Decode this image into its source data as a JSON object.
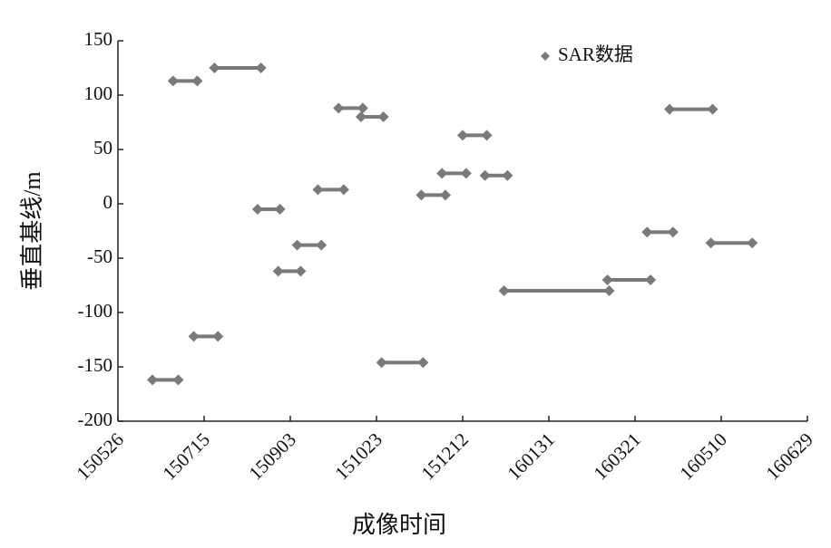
{
  "chart_data": {
    "type": "segment",
    "xlabel": "成像时间",
    "ylabel": "垂直基线/m",
    "xlim": [
      "2015-05-26",
      "2016-06-29"
    ],
    "xticks": [
      {
        "value": "2015-05-26",
        "label": "150526"
      },
      {
        "value": "2015-07-15",
        "label": "150715"
      },
      {
        "value": "2015-09-03",
        "label": "150903"
      },
      {
        "value": "2015-10-23",
        "label": "151023"
      },
      {
        "value": "2015-12-12",
        "label": "151212"
      },
      {
        "value": "2016-01-31",
        "label": "160131"
      },
      {
        "value": "2016-03-21",
        "label": "160321"
      },
      {
        "value": "2016-05-10",
        "label": "160510"
      },
      {
        "value": "2016-06-29",
        "label": "160629"
      }
    ],
    "ylim": [
      -200,
      150
    ],
    "yticks": [
      -200,
      -150,
      -100,
      -50,
      0,
      50,
      100,
      150
    ],
    "legend": "top-right",
    "series": [
      {
        "name": "SAR数据",
        "color": "#7a7a7a",
        "x_start": [
          "2015-06-15",
          "2015-06-27",
          "2015-07-09",
          "2015-07-21",
          "2015-08-15",
          "2015-08-27",
          "2015-09-07",
          "2015-09-19",
          "2015-10-01",
          "2015-10-14",
          "2015-10-26",
          "2015-11-18",
          "2015-11-30",
          "2015-12-12",
          "2015-12-25",
          "2016-01-05",
          "2016-03-05",
          "2016-03-28",
          "2016-04-10",
          "2016-05-04"
        ],
        "x_end": [
          "2015-06-30",
          "2015-07-11",
          "2015-07-23",
          "2015-08-17",
          "2015-08-28",
          "2015-09-09",
          "2015-09-21",
          "2015-10-04",
          "2015-10-15",
          "2015-10-27",
          "2015-11-19",
          "2015-12-02",
          "2015-12-14",
          "2015-12-26",
          "2016-01-07",
          "2016-03-06",
          "2016-03-30",
          "2016-04-12",
          "2016-05-05",
          "2016-05-28"
        ],
        "values": [
          -162,
          113,
          -122,
          125,
          -5,
          -62,
          -38,
          13,
          88,
          80,
          -146,
          8,
          28,
          63,
          26,
          -80,
          -70,
          -26,
          87,
          -36
        ]
      }
    ]
  }
}
